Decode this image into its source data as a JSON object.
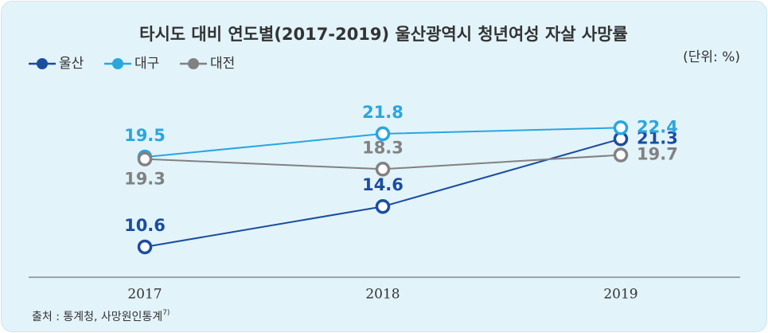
{
  "chart_data": {
    "type": "line",
    "title": "타시도 대비 연도별(2017-2019) 울산광역시 청년여성 자살 사망률",
    "unit": "(단위: %)",
    "categories": [
      "2017",
      "2018",
      "2019"
    ],
    "series": [
      {
        "name": "울산",
        "color": "#1b4d9e",
        "values": [
          10.6,
          14.6,
          21.3
        ]
      },
      {
        "name": "대구",
        "color": "#2aa6df",
        "values": [
          19.5,
          21.8,
          22.4
        ]
      },
      {
        "name": "대전",
        "color": "#818181",
        "values": [
          19.3,
          18.3,
          19.7
        ]
      }
    ],
    "ylim": [
      7.6,
      25.5
    ],
    "legend": "top-left",
    "source": "출처 : 통계청, 사망원인통계",
    "source_note": "7)"
  }
}
